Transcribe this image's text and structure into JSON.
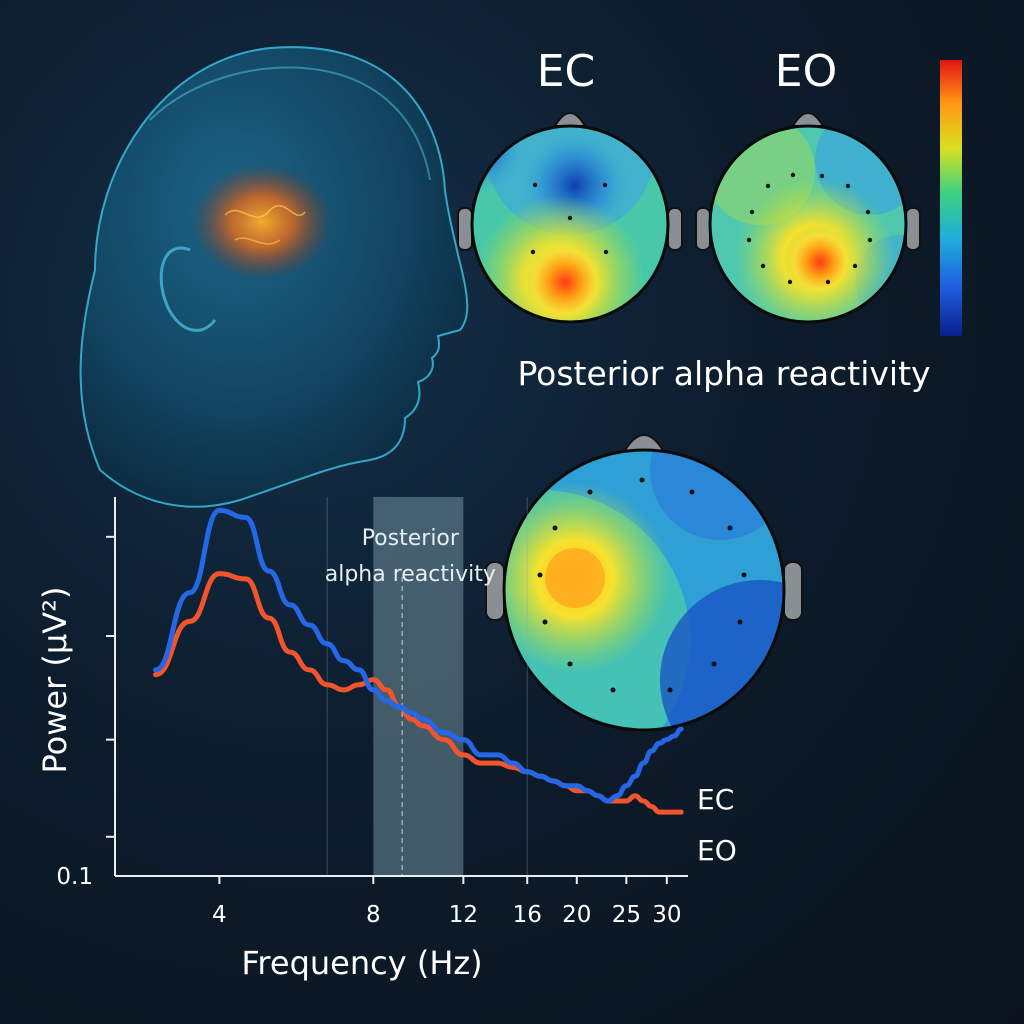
{
  "colors": {
    "ec": "#2468e8",
    "eo": "#f2552e",
    "background": "#0d1c2c",
    "band": "#8fb2bd"
  },
  "topomaps": {
    "left_label": "EC",
    "right_label": "EO",
    "caption": "Posterior alpha reactivity",
    "colorbar": "jet"
  },
  "chart_data": {
    "type": "line",
    "title": "",
    "xlabel": "Frequency (Hz)",
    "ylabel": "Power (μV²)",
    "xlim": [
      2.5,
      33
    ],
    "ylim": [
      0.1,
      1.0
    ],
    "x_ticks": [
      4,
      8,
      12,
      16,
      20,
      25,
      30
    ],
    "y_tick_labels": [
      "0.1"
    ],
    "band": {
      "label_line1": "Posterior",
      "label_line2": "alpha reactivity",
      "range": [
        8,
        12
      ]
    },
    "series": [
      {
        "name": "EC",
        "x": [
          3.0,
          3.5,
          4.0,
          4.5,
          5.0,
          5.5,
          6.0,
          6.5,
          7.0,
          7.5,
          8.0,
          8.5,
          9.0,
          9.5,
          10.0,
          11.0,
          12.0,
          13.0,
          14.0,
          15.0,
          16.0,
          17.0,
          18.0,
          19.0,
          20.0,
          21.0,
          22.0,
          23.0,
          24.0,
          25.0,
          26.0,
          27.0,
          28.0,
          29.0,
          30.0,
          31.0,
          32.0
        ],
        "values": [
          0.34,
          0.55,
          0.92,
          0.88,
          0.63,
          0.51,
          0.45,
          0.4,
          0.36,
          0.34,
          0.3,
          0.28,
          0.27,
          0.26,
          0.25,
          0.23,
          0.22,
          0.2,
          0.2,
          0.19,
          0.18,
          0.175,
          0.17,
          0.165,
          0.165,
          0.16,
          0.155,
          0.15,
          0.155,
          0.165,
          0.175,
          0.19,
          0.205,
          0.215,
          0.22,
          0.225,
          0.235
        ]
      },
      {
        "name": "EO",
        "x": [
          3.0,
          3.5,
          4.0,
          4.5,
          5.0,
          5.5,
          6.0,
          6.5,
          7.0,
          7.5,
          8.0,
          8.5,
          9.0,
          9.5,
          10.0,
          11.0,
          12.0,
          13.0,
          14.0,
          15.0,
          16.0,
          17.0,
          18.0,
          19.0,
          20.0,
          21.0,
          22.0,
          23.0,
          24.0,
          25.0,
          26.0,
          27.0,
          28.0,
          29.0,
          30.0,
          31.0,
          32.0
        ],
        "values": [
          0.33,
          0.46,
          0.62,
          0.6,
          0.47,
          0.38,
          0.34,
          0.31,
          0.3,
          0.31,
          0.32,
          0.3,
          0.27,
          0.25,
          0.24,
          0.22,
          0.2,
          0.19,
          0.19,
          0.185,
          0.18,
          0.175,
          0.17,
          0.165,
          0.16,
          0.16,
          0.155,
          0.15,
          0.15,
          0.15,
          0.155,
          0.15,
          0.145,
          0.14,
          0.14,
          0.14,
          0.14
        ]
      }
    ]
  }
}
